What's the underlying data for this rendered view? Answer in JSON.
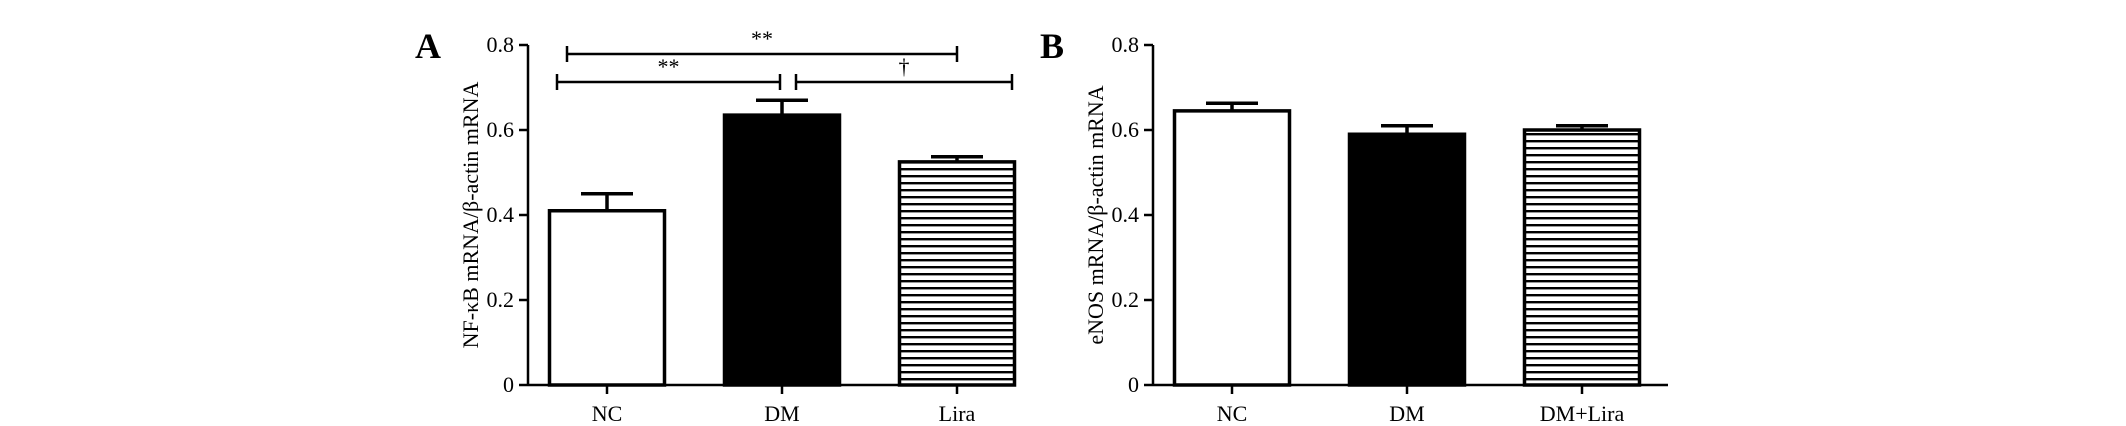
{
  "chart_data": [
    {
      "panel": "A",
      "type": "bar",
      "ylabel": "NF-κB mRNA/β-actin mRNA",
      "ylim": [
        0,
        0.8
      ],
      "yticks": [
        0,
        0.2,
        0.4,
        0.6,
        0.8
      ],
      "categories": [
        "NC",
        "DM",
        "Lira"
      ],
      "values": [
        0.41,
        0.635,
        0.525
      ],
      "errors": [
        0.04,
        0.035,
        0.012
      ],
      "fills": [
        "white",
        "black",
        "hstripes"
      ],
      "significance": [
        {
          "from": 0,
          "to": 2,
          "label": "**",
          "level": 1
        },
        {
          "from": 0,
          "to": 1,
          "label": "**",
          "level": 0
        },
        {
          "from": 1,
          "to": 2,
          "label": "†",
          "level": 0
        }
      ]
    },
    {
      "panel": "B",
      "type": "bar",
      "ylabel": "eNOS mRNA/β-actin mRNA",
      "ylim": [
        0,
        0.8
      ],
      "yticks": [
        0,
        0.2,
        0.4,
        0.6,
        0.8
      ],
      "categories": [
        "NC",
        "DM",
        "DM+Lira"
      ],
      "values": [
        0.645,
        0.59,
        0.6
      ],
      "errors": [
        0.018,
        0.02,
        0.01
      ],
      "fills": [
        "white",
        "black",
        "hstripes"
      ],
      "significance": []
    }
  ],
  "colors": {
    "bar_dark": "#000000",
    "bar_light": "#ffffff",
    "axis": "#000000"
  }
}
